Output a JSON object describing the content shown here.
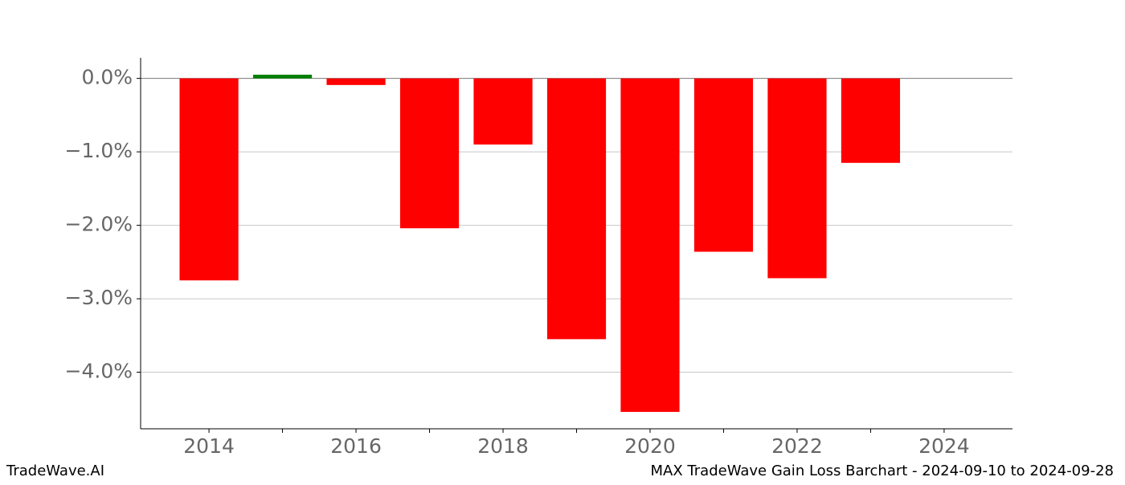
{
  "chart_data": {
    "type": "bar",
    "x": [
      2014,
      2015,
      2016,
      2017,
      2018,
      2019,
      2020,
      2021,
      2022,
      2023
    ],
    "values": [
      -2.75,
      0.05,
      -0.09,
      -2.04,
      -0.9,
      -3.55,
      -4.54,
      -2.36,
      -2.72,
      -1.15
    ],
    "positive_color": "#008000",
    "negative_color": "#ff0000",
    "xlim": [
      2013.07,
      2024.93
    ],
    "xticks": [
      2014,
      2016,
      2018,
      2020,
      2022,
      2024
    ],
    "xminor_ticks": [
      2015,
      2017,
      2019,
      2021,
      2023
    ],
    "ylim": [
      -4.77,
      0.28
    ],
    "yticks": [
      {
        "value": 0,
        "label": "0.0%"
      },
      {
        "value": -1,
        "label": "−1.0%"
      },
      {
        "value": -2,
        "label": "−2.0%"
      },
      {
        "value": -3,
        "label": "−3.0%"
      },
      {
        "value": -4,
        "label": "−4.0%"
      }
    ],
    "grid": true,
    "footer_left": "TradeWave.AI",
    "footer_right": "MAX TradeWave Gain Loss Barchart - 2024-09-10 to 2024-09-28"
  }
}
